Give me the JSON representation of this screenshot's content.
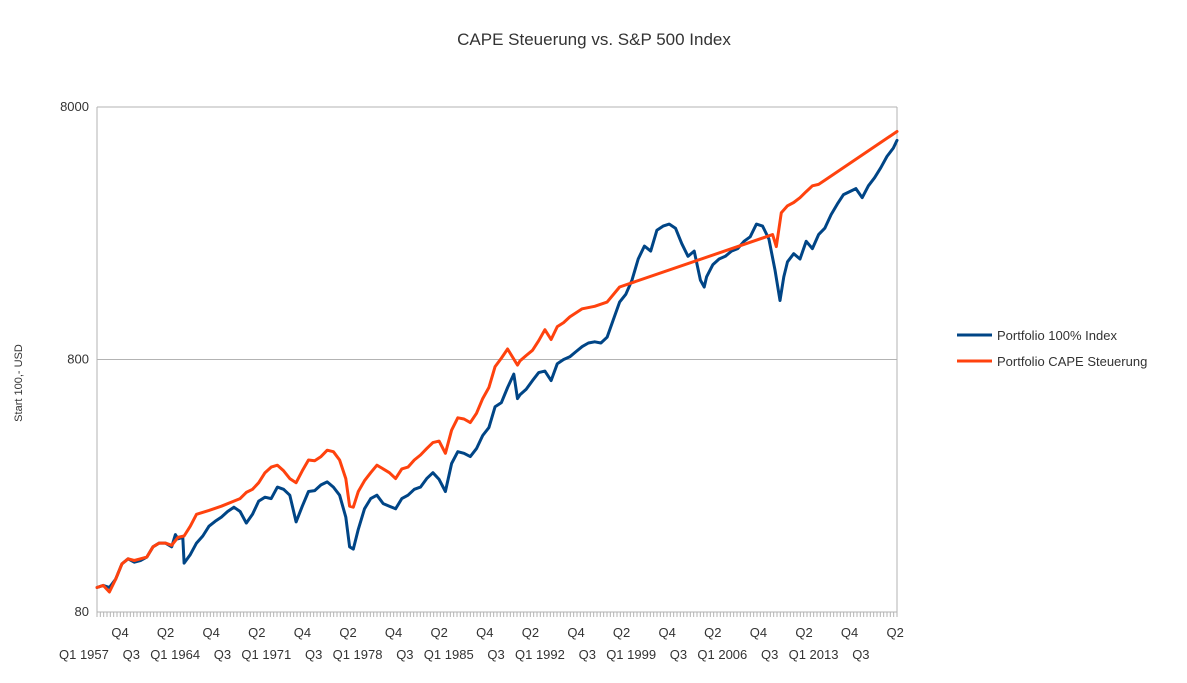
{
  "chart_data": {
    "type": "line",
    "title": "CAPE Steuerung vs. S&P 500 Index",
    "xlabel": "",
    "ylabel": "Start 100,- USD",
    "yscale": "log",
    "ylim": [
      80,
      8000
    ],
    "yticks": [
      "80",
      "800",
      "8000"
    ],
    "grid": true,
    "legend_position": "right",
    "x_tick_labels_row1": [
      "Q4",
      "Q2",
      "Q4",
      "Q2",
      "Q4",
      "Q2",
      "Q4",
      "Q2",
      "Q4",
      "Q2",
      "Q4",
      "Q2",
      "Q4",
      "Q2",
      "Q4",
      "Q2",
      "Q4",
      "Q2"
    ],
    "x_tick_labels_row2": [
      "Q1 1957",
      "Q3",
      "Q1 1964",
      "Q3",
      "Q1 1971",
      "Q3",
      "Q1 1978",
      "Q3",
      "Q1 1985",
      "Q3",
      "Q1 1992",
      "Q3",
      "Q1 1999",
      "Q3",
      "Q1 2006",
      "Q3",
      "Q1 2013",
      "Q3"
    ],
    "x_year_range": [
      1954.0,
      2015.5
    ],
    "series": [
      {
        "name": "Portfolio 100% Index",
        "color": "#004586",
        "points": [
          [
            1954.0,
            100
          ],
          [
            1954.5,
            102
          ],
          [
            1955.0,
            100
          ],
          [
            1955.5,
            108
          ],
          [
            1956.0,
            124
          ],
          [
            1956.5,
            130
          ],
          [
            1957.0,
            126
          ],
          [
            1957.5,
            128
          ],
          [
            1958.0,
            132
          ],
          [
            1958.5,
            145
          ],
          [
            1959.0,
            150
          ],
          [
            1959.5,
            150
          ],
          [
            1960.0,
            145
          ],
          [
            1960.3,
            162
          ],
          [
            1960.5,
            156
          ],
          [
            1960.9,
            158
          ],
          [
            1961.0,
            125
          ],
          [
            1961.5,
            135
          ],
          [
            1962.0,
            150
          ],
          [
            1962.5,
            160
          ],
          [
            1963.0,
            175
          ],
          [
            1963.5,
            183
          ],
          [
            1964.0,
            190
          ],
          [
            1964.5,
            200
          ],
          [
            1965.0,
            208
          ],
          [
            1965.5,
            200
          ],
          [
            1966.0,
            180
          ],
          [
            1966.5,
            195
          ],
          [
            1967.0,
            220
          ],
          [
            1967.5,
            228
          ],
          [
            1968.0,
            225
          ],
          [
            1968.5,
            250
          ],
          [
            1969.0,
            245
          ],
          [
            1969.5,
            232
          ],
          [
            1970.0,
            182
          ],
          [
            1970.5,
            210
          ],
          [
            1971.0,
            240
          ],
          [
            1971.5,
            242
          ],
          [
            1972.0,
            255
          ],
          [
            1972.5,
            262
          ],
          [
            1973.0,
            250
          ],
          [
            1973.5,
            232
          ],
          [
            1974.0,
            190
          ],
          [
            1974.3,
            145
          ],
          [
            1974.6,
            142
          ],
          [
            1975.0,
            170
          ],
          [
            1975.5,
            205
          ],
          [
            1976.0,
            225
          ],
          [
            1976.5,
            232
          ],
          [
            1977.0,
            215
          ],
          [
            1977.5,
            210
          ],
          [
            1978.0,
            205
          ],
          [
            1978.5,
            225
          ],
          [
            1979.0,
            232
          ],
          [
            1979.5,
            245
          ],
          [
            1980.0,
            250
          ],
          [
            1980.5,
            270
          ],
          [
            1981.0,
            285
          ],
          [
            1981.5,
            268
          ],
          [
            1982.0,
            240
          ],
          [
            1982.5,
            310
          ],
          [
            1983.0,
            345
          ],
          [
            1983.5,
            340
          ],
          [
            1984.0,
            330
          ],
          [
            1984.5,
            355
          ],
          [
            1985.0,
            400
          ],
          [
            1985.5,
            430
          ],
          [
            1986.0,
            520
          ],
          [
            1986.5,
            540
          ],
          [
            1987.0,
            620
          ],
          [
            1987.5,
            700
          ],
          [
            1987.8,
            560
          ],
          [
            1988.0,
            580
          ],
          [
            1988.5,
            610
          ],
          [
            1989.0,
            660
          ],
          [
            1989.5,
            710
          ],
          [
            1990.0,
            720
          ],
          [
            1990.5,
            660
          ],
          [
            1991.0,
            770
          ],
          [
            1991.5,
            800
          ],
          [
            1992.0,
            820
          ],
          [
            1992.5,
            860
          ],
          [
            1993.0,
            900
          ],
          [
            1993.5,
            930
          ],
          [
            1994.0,
            940
          ],
          [
            1994.5,
            930
          ],
          [
            1995.0,
            980
          ],
          [
            1995.5,
            1150
          ],
          [
            1996.0,
            1350
          ],
          [
            1996.5,
            1450
          ],
          [
            1997.0,
            1650
          ],
          [
            1997.5,
            2000
          ],
          [
            1998.0,
            2250
          ],
          [
            1998.5,
            2150
          ],
          [
            1999.0,
            2600
          ],
          [
            1999.5,
            2700
          ],
          [
            2000.0,
            2750
          ],
          [
            2000.5,
            2650
          ],
          [
            2001.0,
            2300
          ],
          [
            2001.5,
            2050
          ],
          [
            2002.0,
            2150
          ],
          [
            2002.5,
            1650
          ],
          [
            2002.8,
            1550
          ],
          [
            2003.0,
            1700
          ],
          [
            2003.5,
            1900
          ],
          [
            2004.0,
            2000
          ],
          [
            2004.5,
            2050
          ],
          [
            2005.0,
            2150
          ],
          [
            2005.5,
            2200
          ],
          [
            2006.0,
            2350
          ],
          [
            2006.5,
            2450
          ],
          [
            2007.0,
            2750
          ],
          [
            2007.5,
            2700
          ],
          [
            2008.0,
            2400
          ],
          [
            2008.5,
            1800
          ],
          [
            2008.9,
            1370
          ],
          [
            2009.2,
            1700
          ],
          [
            2009.5,
            1950
          ],
          [
            2010.0,
            2100
          ],
          [
            2010.5,
            2000
          ],
          [
            2011.0,
            2350
          ],
          [
            2011.5,
            2200
          ],
          [
            2012.0,
            2500
          ],
          [
            2012.5,
            2650
          ],
          [
            2013.0,
            3000
          ],
          [
            2013.5,
            3300
          ],
          [
            2014.0,
            3600
          ],
          [
            2014.5,
            3700
          ],
          [
            2015.0,
            3800
          ],
          [
            2015.5,
            3500
          ],
          [
            2016.0,
            3900
          ],
          [
            2016.5,
            4200
          ],
          [
            2017.0,
            4600
          ],
          [
            2017.5,
            5100
          ],
          [
            2018.0,
            5500
          ],
          [
            2018.3,
            5900
          ]
        ]
      },
      {
        "name": "Portfolio CAPE Steuerung",
        "color": "#ff420e",
        "points": [
          [
            1954.0,
            100
          ],
          [
            1954.5,
            102
          ],
          [
            1955.0,
            96
          ],
          [
            1955.5,
            108
          ],
          [
            1956.0,
            124
          ],
          [
            1956.5,
            130
          ],
          [
            1957.0,
            128
          ],
          [
            1957.5,
            130
          ],
          [
            1958.0,
            132
          ],
          [
            1958.5,
            145
          ],
          [
            1959.0,
            150
          ],
          [
            1959.5,
            150
          ],
          [
            1960.0,
            147
          ],
          [
            1960.5,
            158
          ],
          [
            1961.0,
            160
          ],
          [
            1961.5,
            175
          ],
          [
            1962.0,
            195
          ],
          [
            1963.0,
            202
          ],
          [
            1964.0,
            210
          ],
          [
            1965.0,
            220
          ],
          [
            1965.5,
            225
          ],
          [
            1966.0,
            238
          ],
          [
            1966.5,
            245
          ],
          [
            1967.0,
            260
          ],
          [
            1967.5,
            285
          ],
          [
            1968.0,
            300
          ],
          [
            1968.5,
            305
          ],
          [
            1969.0,
            290
          ],
          [
            1969.5,
            270
          ],
          [
            1970.0,
            260
          ],
          [
            1970.5,
            290
          ],
          [
            1971.0,
            320
          ],
          [
            1971.5,
            318
          ],
          [
            1972.0,
            330
          ],
          [
            1972.5,
            350
          ],
          [
            1973.0,
            345
          ],
          [
            1973.5,
            320
          ],
          [
            1974.0,
            270
          ],
          [
            1974.3,
            210
          ],
          [
            1974.6,
            208
          ],
          [
            1975.0,
            240
          ],
          [
            1975.5,
            265
          ],
          [
            1976.0,
            285
          ],
          [
            1976.5,
            305
          ],
          [
            1977.0,
            295
          ],
          [
            1977.5,
            285
          ],
          [
            1978.0,
            270
          ],
          [
            1978.5,
            295
          ],
          [
            1979.0,
            300
          ],
          [
            1979.5,
            320
          ],
          [
            1980.0,
            335
          ],
          [
            1980.5,
            355
          ],
          [
            1981.0,
            375
          ],
          [
            1981.5,
            380
          ],
          [
            1982.0,
            340
          ],
          [
            1982.5,
            420
          ],
          [
            1983.0,
            470
          ],
          [
            1983.5,
            465
          ],
          [
            1984.0,
            450
          ],
          [
            1984.5,
            490
          ],
          [
            1985.0,
            560
          ],
          [
            1985.5,
            620
          ],
          [
            1986.0,
            750
          ],
          [
            1986.5,
            810
          ],
          [
            1987.0,
            880
          ],
          [
            1987.8,
            760
          ],
          [
            1988.0,
            790
          ],
          [
            1988.5,
            830
          ],
          [
            1989.0,
            870
          ],
          [
            1989.5,
            950
          ],
          [
            1990.0,
            1050
          ],
          [
            1990.5,
            960
          ],
          [
            1991.0,
            1080
          ],
          [
            1991.5,
            1120
          ],
          [
            1992.0,
            1180
          ],
          [
            1993.0,
            1270
          ],
          [
            1994.0,
            1300
          ],
          [
            1995.0,
            1350
          ],
          [
            1996.0,
            1550
          ],
          [
            2008.3,
            2500
          ],
          [
            2008.6,
            2240
          ],
          [
            2009.0,
            3050
          ],
          [
            2009.5,
            3250
          ],
          [
            2010.0,
            3350
          ],
          [
            2010.5,
            3500
          ],
          [
            2011.0,
            3700
          ],
          [
            2011.5,
            3900
          ],
          [
            2012.0,
            3950
          ],
          [
            2012.5,
            4100
          ],
          [
            2018.3,
            6400
          ]
        ]
      }
    ]
  }
}
